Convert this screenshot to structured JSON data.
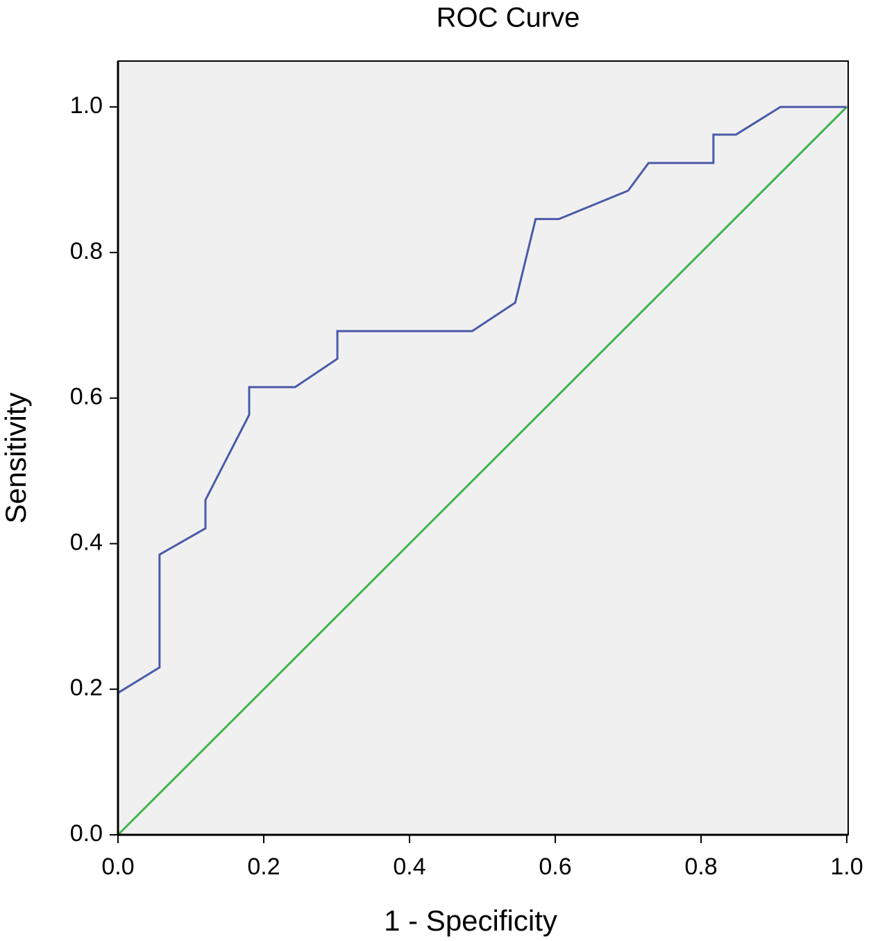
{
  "chart_data": {
    "type": "line",
    "title": "ROC Curve",
    "x_label": "1 - Specificity",
    "y_label": "Sensitivity",
    "xlim": [
      0,
      1
    ],
    "ylim": [
      0,
      1.063
    ],
    "xticks": [
      {
        "value": 0,
        "label": "0.0"
      },
      0.2,
      0.4,
      0.6,
      0.8,
      {
        "value": 1,
        "label": "1.0"
      }
    ],
    "yticks": [
      {
        "value": 0,
        "label": "0.0"
      },
      0.2,
      0.4,
      0.6,
      0.8,
      {
        "value": 1,
        "label": "1.0"
      }
    ],
    "series": [
      {
        "color": "#4a5aa8",
        "x": [
          0,
          0,
          0.057,
          0.057,
          0.12,
          0.12,
          0.18,
          0.18,
          0.243,
          0.301,
          0.301,
          0.486,
          0.545,
          0.573,
          0.605,
          0.7,
          0.728,
          0.817,
          0.817,
          0.848,
          0.909,
          1
        ],
        "values": [
          0,
          0.195,
          0.23,
          0.385,
          0.421,
          0.46,
          0.577,
          0.615,
          0.615,
          0.654,
          0.692,
          0.692,
          0.731,
          0.846,
          0.846,
          0.885,
          0.923,
          0.923,
          0.962,
          0.962,
          1,
          1
        ]
      },
      {
        "color": "#3cb44b",
        "x": [
          0,
          1
        ],
        "values": [
          0,
          1
        ]
      }
    ]
  }
}
